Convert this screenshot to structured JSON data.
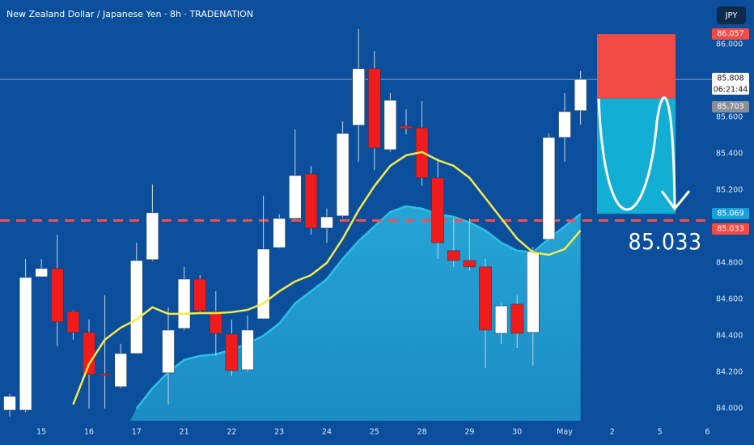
{
  "chart_data": {
    "type": "candlestick",
    "title": "New Zealand Dollar / Japanese Yen · 8h · TRADENATION",
    "currency": "JPY",
    "countdown": "06:21:44",
    "categories": [
      null,
      null,
      "15",
      null,
      null,
      "16",
      null,
      null,
      "17",
      null,
      null,
      "21",
      null,
      null,
      "22",
      null,
      null,
      "23",
      null,
      null,
      "24",
      null,
      null,
      "25",
      null,
      null,
      "28",
      null,
      null,
      "29",
      null,
      null,
      "30",
      null,
      null,
      "May",
      null,
      null,
      "2",
      null,
      null,
      "5",
      null,
      null,
      "6"
    ],
    "open": [
      83.991,
      83.991,
      84.724,
      84.769,
      84.533,
      84.418,
      84.191,
      84.12,
      84.302,
      84.818,
      84.196,
      84.44,
      84.711,
      84.533,
      84.409,
      84.213,
      84.493,
      84.884,
      85.044,
      85.289,
      84.991,
      85.058,
      85.556,
      85.867,
      85.422,
      85.551,
      85.542,
      85.267,
      84.867,
      84.813,
      84.778,
      84.413,
      84.573,
      84.418,
      84.929,
      85.489,
      85.636,
      null,
      null,
      null,
      null,
      null,
      null,
      null,
      null
    ],
    "high": [
      84.08,
      84.822,
      84.822,
      84.956,
      84.54,
      84.489,
      84.622,
      84.356,
      84.911,
      85.231,
      84.556,
      84.778,
      84.733,
      84.644,
      84.489,
      84.511,
      85.169,
      85.067,
      85.533,
      85.333,
      85.098,
      85.578,
      86.084,
      85.964,
      85.733,
      85.644,
      85.689,
      85.373,
      85.044,
      85.044,
      84.822,
      84.578,
      84.622,
      84.889,
      85.511,
      85.733,
      85.853,
      null,
      null,
      null,
      null,
      null,
      null,
      null,
      null
    ],
    "low": [
      83.956,
      83.98,
      84.72,
      84.342,
      84.378,
      84.0,
      84.0,
      84.111,
      84.3,
      84.81,
      84.022,
      84.43,
      84.53,
      84.289,
      84.178,
      84.2,
      84.49,
      84.88,
      85.04,
      84.956,
      84.911,
      85.05,
      85.356,
      85.311,
      85.41,
      85.507,
      85.222,
      84.822,
      84.778,
      84.756,
      84.222,
      84.356,
      84.333,
      84.236,
      84.92,
      85.356,
      85.56,
      null,
      null,
      null,
      null,
      null,
      null,
      null,
      null
    ],
    "close": [
      84.067,
      84.72,
      84.769,
      84.476,
      84.418,
      84.187,
      84.182,
      84.302,
      84.813,
      85.076,
      84.431,
      84.711,
      84.538,
      84.413,
      84.209,
      84.431,
      84.876,
      85.044,
      85.28,
      84.991,
      85.053,
      85.511,
      85.867,
      85.431,
      85.693,
      85.538,
      85.267,
      84.911,
      84.813,
      84.778,
      84.431,
      84.564,
      84.413,
      84.862,
      85.489,
      85.631,
      85.808,
      null,
      null,
      null,
      null,
      null,
      null,
      null,
      null
    ],
    "up_color": "#ffffff",
    "down_color": "#f21b1b",
    "ma_fast": {
      "color": "#f5e84e",
      "values": [
        null,
        null,
        null,
        null,
        84.022,
        84.244,
        84.378,
        84.444,
        84.489,
        84.556,
        84.52,
        84.52,
        84.524,
        84.524,
        84.529,
        84.542,
        84.578,
        84.644,
        84.698,
        84.733,
        84.8,
        84.933,
        85.089,
        85.222,
        85.333,
        85.391,
        85.409,
        85.364,
        85.333,
        85.267,
        85.156,
        85.044,
        84.933,
        84.858,
        84.844,
        84.876,
        84.978,
        null,
        null,
        null,
        null,
        null,
        null,
        null,
        null
      ]
    },
    "ma_slow": {
      "color": "#2bc0e6",
      "values": [
        null,
        null,
        null,
        null,
        null,
        null,
        null,
        null,
        84.0,
        84.111,
        84.2,
        84.267,
        84.289,
        84.298,
        84.324,
        84.356,
        84.4,
        84.467,
        84.578,
        84.644,
        84.711,
        84.822,
        84.92,
        85.0,
        85.08,
        85.111,
        85.098,
        85.067,
        85.053,
        85.022,
        84.978,
        84.911,
        84.867,
        84.858,
        84.933,
        85.0,
        85.069,
        null,
        null,
        null,
        null,
        null,
        null,
        null,
        null
      ]
    },
    "position": {
      "stop": 86.057,
      "entry": 85.703,
      "target": 85.07
    },
    "level": 85.033,
    "ylim": [
      83.933,
      86.244
    ],
    "yticks": [
      {
        "value": 84,
        "label": "84.000"
      },
      {
        "value": 84.2,
        "label": "84.200"
      },
      {
        "value": 84.4,
        "label": "84.400"
      },
      {
        "value": 84.6,
        "label": "84.600"
      },
      {
        "value": 84.8,
        "label": "84.800"
      },
      {
        "value": 85.2,
        "label": "85.200"
      },
      {
        "value": 85.4,
        "label": "85.400"
      },
      {
        "value": 85.6,
        "label": "85.600"
      },
      {
        "value": 86,
        "label": "86.000"
      }
    ]
  }
}
